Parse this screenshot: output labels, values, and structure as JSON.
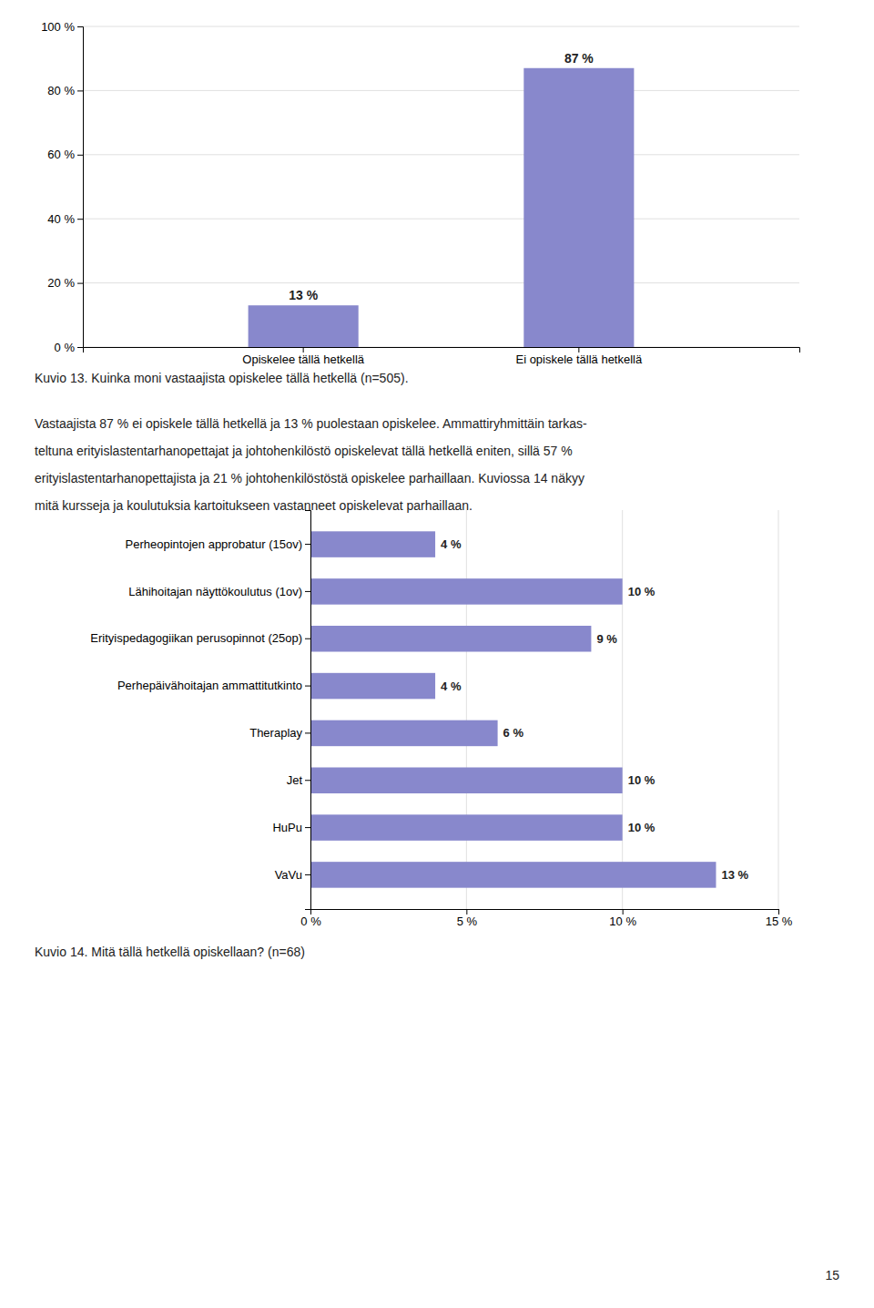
{
  "chart_data": [
    {
      "type": "bar",
      "title": "Kuvio 13. Kuinka moni vastaajista opiskelee tällä hetkellä (n=505).",
      "categories": [
        "Opiskelee tällä hetkellä",
        "Ei opiskele tällä hetkellä"
      ],
      "values": [
        13,
        87
      ],
      "value_labels": [
        "13 %",
        "87 %"
      ],
      "data_labels": true,
      "color": "#8888cc",
      "ylim": [
        0,
        100
      ],
      "yticks": [
        {
          "value": 0,
          "label": "0 %"
        },
        {
          "value": 20,
          "label": "20 %"
        },
        {
          "value": 40,
          "label": "40 %"
        },
        {
          "value": 60,
          "label": "60 %"
        },
        {
          "value": 80,
          "label": "80 %"
        },
        {
          "value": 100,
          "label": "100 %"
        }
      ],
      "grid": true
    },
    {
      "type": "bar",
      "orientation": "horizontal",
      "title": "Kuvio 14. Mitä tällä hetkellä opiskellaan? (n=68)",
      "categories": [
        "Perheopintojen approbatur (15ov)",
        "Lähihoitajan näyttökoulutus (1ov)",
        "Erityispedagogiikan perusopinnot (25op)",
        "Perhepäivähoitajan ammattitutkinto",
        "Theraplay",
        "Jet",
        "HuPu",
        "VaVu"
      ],
      "values": [
        4,
        10,
        9,
        4,
        6,
        10,
        10,
        13
      ],
      "value_labels": [
        "4 %",
        "10 %",
        "9 %",
        "4 %",
        "6 %",
        "10 %",
        "10 %",
        "13 %"
      ],
      "data_labels": true,
      "color": "#8888cc",
      "xlim": [
        0,
        15
      ],
      "xticks": [
        {
          "value": 0,
          "label": "0 %"
        },
        {
          "value": 5,
          "label": "5 %"
        },
        {
          "value": 10,
          "label": "10 %"
        },
        {
          "value": 15,
          "label": "15 %"
        }
      ],
      "grid": true
    }
  ],
  "text": [
    "Vastaajista 87 % ei opiskele tällä hetkellä ja 13 % puolestaan opiskelee. Ammattiryhmittäin tarkas-",
    "teltuna erityislastentarhanopettajat ja johtohenkilöstö opiskelevat tällä hetkellä eniten, sillä 57 %",
    "erityislastentarhanopettajista ja 21 % johtohenkilöstöstä opiskelee parhaillaan. Kuviossa 14 näkyy",
    "mitä kursseja ja koulutuksia kartoitukseen vastanneet opiskelevat parhaillaan."
  ],
  "page_number": "15"
}
